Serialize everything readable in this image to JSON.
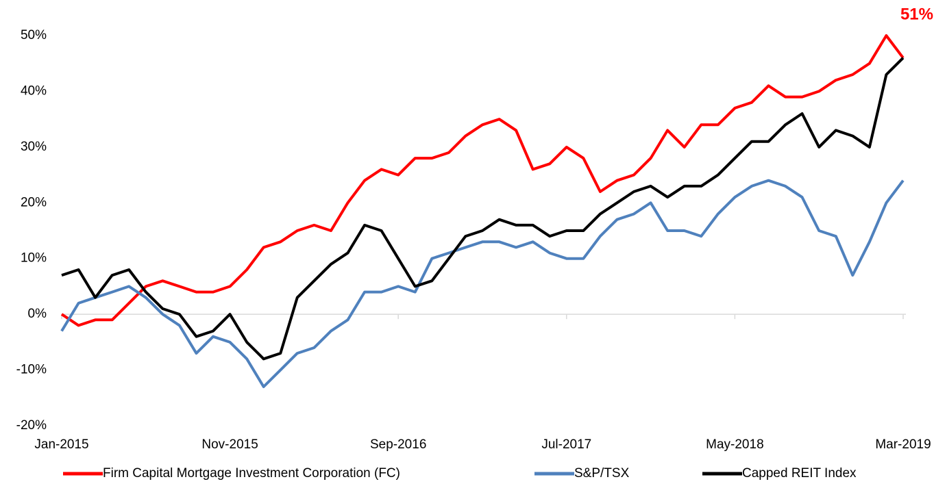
{
  "chart_data": {
    "type": "line",
    "annotation": "51%",
    "annotation_color": "#ff0000",
    "categories": [
      "Jan-2015",
      null,
      null,
      null,
      null,
      null,
      null,
      null,
      null,
      null,
      "Nov-2015",
      null,
      null,
      null,
      null,
      null,
      null,
      null,
      null,
      null,
      "Sep-2016",
      null,
      null,
      null,
      null,
      null,
      null,
      null,
      null,
      null,
      "Jul-2017",
      null,
      null,
      null,
      null,
      null,
      null,
      null,
      null,
      null,
      "May-2018",
      null,
      null,
      null,
      null,
      null,
      null,
      null,
      null,
      null,
      "Mar-2019"
    ],
    "series": [
      {
        "name": "Firm Capital Mortgage Investment Corporation (FC)",
        "color": "#ff0000",
        "values": [
          0,
          -2,
          -1,
          -1,
          2,
          5,
          6,
          5,
          4,
          4,
          5,
          8,
          12,
          13,
          15,
          16,
          15,
          20,
          24,
          26,
          25,
          28,
          28,
          29,
          32,
          34,
          35,
          33,
          26,
          27,
          30,
          28,
          22,
          24,
          25,
          28,
          33,
          30,
          34,
          34,
          37,
          38,
          41,
          39,
          39,
          40,
          42,
          43,
          45,
          50,
          46
        ]
      },
      {
        "name": "S&P/TSX",
        "color": "#4f81bd",
        "values": [
          -3,
          2,
          3,
          4,
          5,
          3,
          0,
          -2,
          -7,
          -4,
          -5,
          -8,
          -13,
          -10,
          -7,
          -6,
          -3,
          -1,
          4,
          4,
          5,
          4,
          10,
          11,
          12,
          13,
          13,
          12,
          13,
          11,
          10,
          10,
          14,
          17,
          18,
          20,
          15,
          15,
          14,
          18,
          21,
          23,
          24,
          23,
          21,
          15,
          14,
          7,
          13,
          20,
          24
        ]
      },
      {
        "name": "Capped REIT Index",
        "color": "#000000",
        "values": [
          7,
          8,
          3,
          7,
          8,
          4,
          1,
          0,
          -4,
          -3,
          0,
          -5,
          -8,
          -7,
          3,
          6,
          9,
          11,
          16,
          15,
          10,
          5,
          6,
          10,
          14,
          15,
          17,
          16,
          16,
          14,
          15,
          15,
          18,
          20,
          22,
          23,
          21,
          23,
          23,
          25,
          28,
          31,
          31,
          34,
          36,
          30,
          33,
          32,
          30,
          43,
          46
        ]
      }
    ],
    "ylim": [
      -20,
      50
    ],
    "yticks": [
      {
        "value": -20,
        "label": "-20%"
      },
      {
        "value": -10,
        "label": "-10%"
      },
      {
        "value": 0,
        "label": "0%"
      },
      {
        "value": 10,
        "label": "10%"
      },
      {
        "value": 20,
        "label": "20%"
      },
      {
        "value": 30,
        "label": "30%"
      },
      {
        "value": 40,
        "label": "40%"
      },
      {
        "value": 50,
        "label": "50%"
      }
    ],
    "grid": false,
    "legend": "bottom"
  }
}
